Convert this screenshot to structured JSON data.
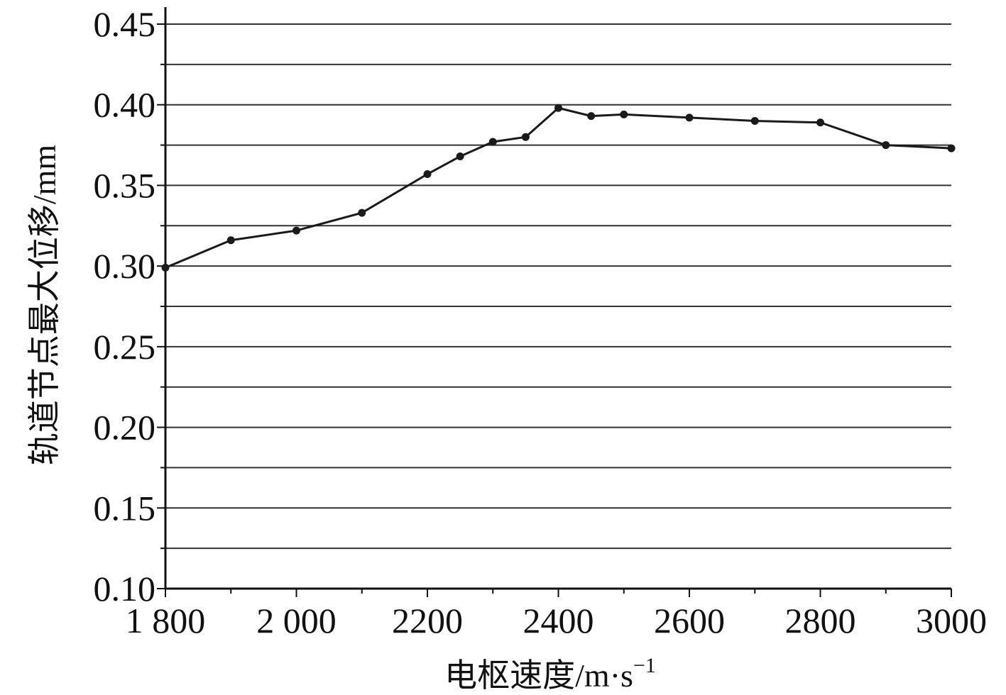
{
  "chart_data": {
    "type": "line",
    "title": "",
    "xlabel": "电枢速度/m·s",
    "xlabel_superscript": "−1",
    "ylabel": "轨道节点最大位移/mm",
    "xlim": [
      1800,
      3000
    ],
    "ylim": [
      0.1,
      0.45
    ],
    "x_ticks": [
      1800,
      2000,
      2200,
      2400,
      2600,
      2800,
      3000
    ],
    "x_tick_labels": [
      "1 800",
      "2 000",
      "2200",
      "2400",
      "2600",
      "2800",
      "3000"
    ],
    "x_minor_step": 100,
    "y_ticks": [
      0.1,
      0.15,
      0.2,
      0.25,
      0.3,
      0.35,
      0.4,
      0.45
    ],
    "y_tick_labels": [
      "0.10",
      "0.15",
      "0.20",
      "0.25",
      "0.30",
      "0.35",
      "0.40",
      "0.45"
    ],
    "y_gridlines": [
      0.125,
      0.15,
      0.175,
      0.2,
      0.225,
      0.25,
      0.275,
      0.3,
      0.325,
      0.35,
      0.375,
      0.4,
      0.425,
      0.45
    ],
    "grid": "horizontal",
    "colors": {
      "line": "#1a1a1a",
      "grid": "#333333",
      "axis": "#111111"
    },
    "series": [
      {
        "x": [
          1800,
          1900,
          2000,
          2100,
          2200,
          2250,
          2300,
          2350,
          2400,
          2450,
          2500,
          2600,
          2700,
          2800,
          2900,
          3000
        ],
        "y": [
          0.299,
          0.316,
          0.322,
          0.333,
          0.357,
          0.368,
          0.377,
          0.38,
          0.398,
          0.393,
          0.394,
          0.392,
          0.39,
          0.389,
          0.375,
          0.373
        ]
      }
    ]
  }
}
